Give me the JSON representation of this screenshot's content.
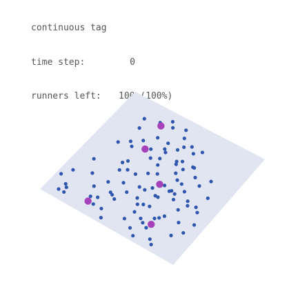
{
  "title": "continuous tag",
  "stats": {
    "time_step_label": "time step:",
    "time_step_value": "0",
    "runners_label": "runners left:",
    "runners_value": "100 (100%)"
  },
  "colors": {
    "board": "#e1e4f1",
    "runner": "#2e56ad",
    "tagger": "#a642b9"
  },
  "runners": [
    [
      0.67,
      0.96
    ],
    [
      0.33,
      0.9
    ],
    [
      0.32,
      0.84
    ],
    [
      0.57,
      0.8
    ],
    [
      0.58,
      0.72
    ],
    [
      0.38,
      0.65
    ],
    [
      0.3,
      0.58
    ],
    [
      0.77,
      0.92
    ],
    [
      0.7,
      0.77
    ],
    [
      0.74,
      0.72
    ],
    [
      0.86,
      0.82
    ],
    [
      0.47,
      0.41
    ],
    [
      0.51,
      0.47
    ],
    [
      0.46,
      0.5
    ],
    [
      0.28,
      0.52
    ],
    [
      0.3,
      0.49
    ],
    [
      0.43,
      0.28
    ],
    [
      0.55,
      0.32
    ],
    [
      0.56,
      0.34
    ],
    [
      0.58,
      0.3
    ],
    [
      0.45,
      0.36
    ],
    [
      0.62,
      0.35
    ],
    [
      0.4,
      0.39
    ],
    [
      0.5,
      0.24
    ],
    [
      0.28,
      0.3
    ],
    [
      0.2,
      0.23
    ],
    [
      0.34,
      0.23
    ],
    [
      0.18,
      0.15
    ],
    [
      0.28,
      0.12
    ],
    [
      0.37,
      0.11
    ],
    [
      0.78,
      0.63
    ],
    [
      0.73,
      0.49
    ],
    [
      0.79,
      0.54
    ],
    [
      0.81,
      0.57
    ],
    [
      0.86,
      0.55
    ],
    [
      0.89,
      0.58
    ],
    [
      0.68,
      0.45
    ],
    [
      0.6,
      0.4
    ],
    [
      0.66,
      0.3
    ],
    [
      0.56,
      0.17
    ],
    [
      0.64,
      0.17
    ],
    [
      0.45,
      0.08
    ],
    [
      0.34,
      0.07
    ],
    [
      0.09,
      0.93
    ],
    [
      0.13,
      0.93
    ],
    [
      0.12,
      0.89
    ],
    [
      0.07,
      0.75
    ],
    [
      0.03,
      0.82
    ],
    [
      0.72,
      0.75
    ],
    [
      0.55,
      0.58
    ],
    [
      0.52,
      0.62
    ],
    [
      0.6,
      0.52
    ],
    [
      0.65,
      0.54
    ],
    [
      0.66,
      0.53
    ],
    [
      0.69,
      0.54
    ],
    [
      0.41,
      0.79
    ],
    [
      0.38,
      0.77
    ],
    [
      0.36,
      0.76
    ],
    [
      0.71,
      0.58
    ],
    [
      0.43,
      0.96
    ],
    [
      0.39,
      0.9
    ],
    [
      0.63,
      0.82
    ],
    [
      0.66,
      0.84
    ],
    [
      0.62,
      0.62
    ],
    [
      0.52,
      0.2
    ],
    [
      0.48,
      0.14
    ],
    [
      0.8,
      0.95
    ],
    [
      0.28,
      0.86
    ],
    [
      0.67,
      0.3
    ],
    [
      0.6,
      0.21
    ],
    [
      0.84,
      0.71
    ],
    [
      0.1,
      0.87
    ],
    [
      0.93,
      0.67
    ],
    [
      0.91,
      0.76
    ],
    [
      0.22,
      0.35
    ],
    [
      0.25,
      0.38
    ],
    [
      0.45,
      0.3
    ],
    [
      0.42,
      0.23
    ],
    [
      0.62,
      0.71
    ],
    [
      0.55,
      0.74
    ],
    [
      0.16,
      0.4
    ],
    [
      0.7,
      0.86
    ],
    [
      0.64,
      0.44
    ],
    [
      0.6,
      0.62
    ],
    [
      0.34,
      0.55
    ],
    [
      0.12,
      0.6
    ],
    [
      0.78,
      0.4
    ],
    [
      0.82,
      0.33
    ],
    [
      0.48,
      0.62
    ],
    [
      0.52,
      0.7
    ],
    [
      0.36,
      0.33
    ],
    [
      0.18,
      0.7
    ],
    [
      0.25,
      0.78
    ],
    [
      0.44,
      0.7
    ],
    [
      0.3,
      0.7
    ],
    [
      0.88,
      0.45
    ],
    [
      0.72,
      0.36
    ],
    [
      0.55,
      0.88
    ],
    [
      0.4,
      0.55
    ],
    [
      0.62,
      0.92
    ]
  ],
  "taggers": [
    [
      0.29,
      0.9
    ],
    [
      0.71,
      0.82
    ],
    [
      0.57,
      0.53
    ],
    [
      0.33,
      0.35
    ],
    [
      0.3,
      0.14
    ]
  ]
}
